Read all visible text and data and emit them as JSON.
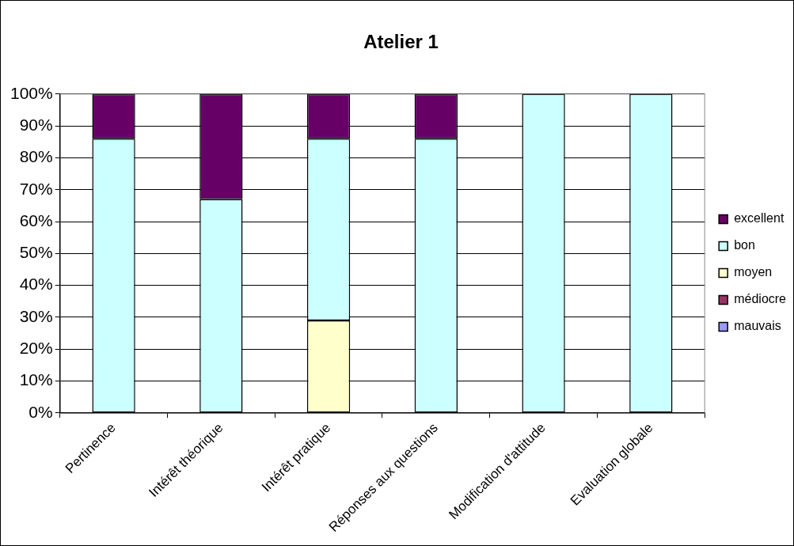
{
  "chart_data": {
    "type": "bar",
    "title": "Atelier 1",
    "stacked": true,
    "legend": "right",
    "grid": "y",
    "categories": [
      "Pertinence",
      "Intérêt théorique",
      "Intérêt pratique",
      "Réponses aux questions",
      "Modification d'attitude",
      "Evaluation globale"
    ],
    "series": [
      {
        "name": "mauvais",
        "color": "#9999ff",
        "values": [
          0,
          0,
          0,
          0,
          0,
          0
        ]
      },
      {
        "name": "médiocre",
        "color": "#993366",
        "values": [
          0,
          0,
          0,
          0,
          0,
          0
        ]
      },
      {
        "name": "moyen",
        "color": "#ffffcc",
        "values": [
          0,
          0,
          29,
          0,
          0,
          0
        ]
      },
      {
        "name": "bon",
        "color": "#ccffff",
        "values": [
          86,
          67,
          57,
          86,
          100,
          100
        ]
      },
      {
        "name": "excellent",
        "color": "#660066",
        "values": [
          14,
          33,
          14,
          14,
          0,
          0
        ]
      }
    ],
    "ylim": [
      0,
      100
    ],
    "yticks": [
      {
        "value": 0,
        "label": "0%"
      },
      {
        "value": 10,
        "label": "10%"
      },
      {
        "value": 20,
        "label": "20%"
      },
      {
        "value": 30,
        "label": "30%"
      },
      {
        "value": 40,
        "label": "40%"
      },
      {
        "value": 50,
        "label": "50%"
      },
      {
        "value": 60,
        "label": "60%"
      },
      {
        "value": 70,
        "label": "70%"
      },
      {
        "value": 80,
        "label": "80%"
      },
      {
        "value": 90,
        "label": "90%"
      },
      {
        "value": 100,
        "label": "100%"
      }
    ]
  }
}
